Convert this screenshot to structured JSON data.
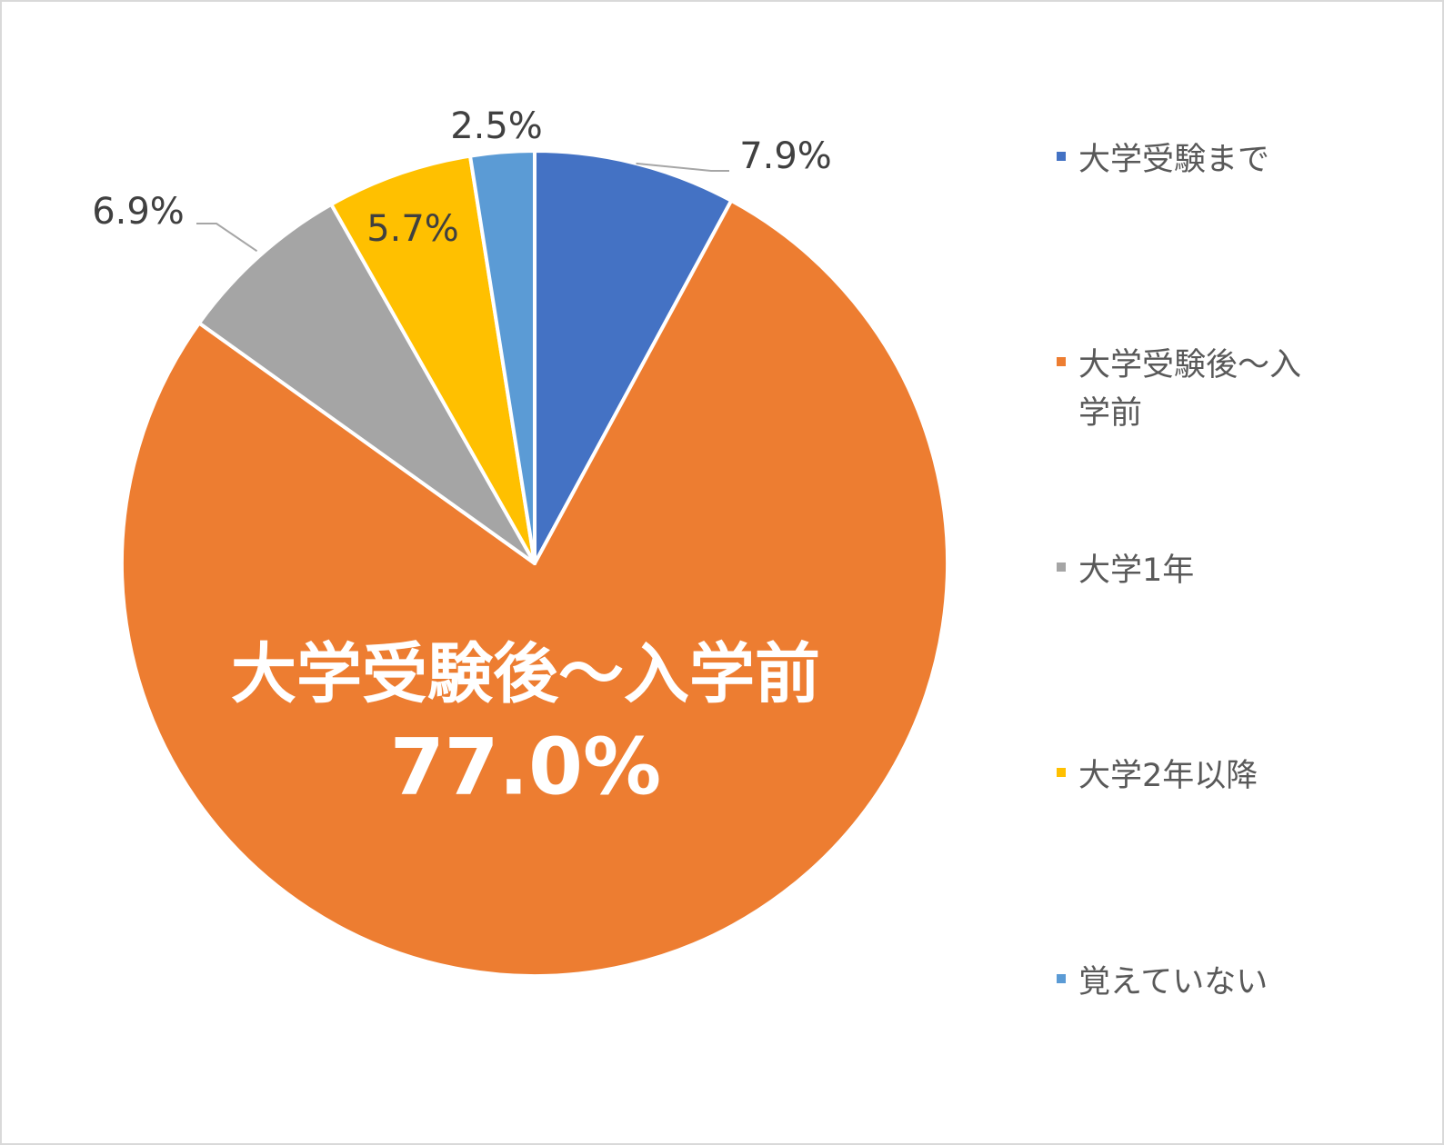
{
  "chart_data": {
    "type": "pie",
    "categories": [
      "大学受験まで",
      "大学受験後～入学前",
      "大学1年",
      "大学2年以降",
      "覚えていない"
    ],
    "values": [
      7.9,
      77.0,
      6.9,
      5.7,
      2.5
    ],
    "data_labels": [
      "7.9%",
      "77.0%",
      "6.9%",
      "5.7%",
      "2.5%"
    ],
    "colors": [
      "#4472C4",
      "#ED7D31",
      "#A5A5A5",
      "#FFC000",
      "#5B9BD5"
    ],
    "highlight": {
      "label": "大学受験後～入学前",
      "value_label": "77.0%"
    },
    "legend_position": "right",
    "start_angle": "12 o'clock",
    "direction": "clockwise"
  }
}
